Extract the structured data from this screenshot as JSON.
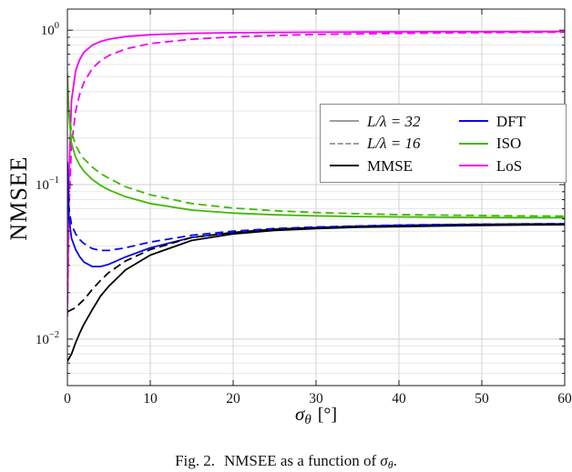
{
  "figure": {
    "ylabel": "NMSEE",
    "xlabel": {
      "sigma": "σ",
      "sub": "θ",
      "unit": "[°]"
    },
    "caption": {
      "tag": "Fig. 2.",
      "text": "NMSEE as a function of",
      "sigma": "σ",
      "sub": "θ",
      "period": "."
    }
  },
  "colors": {
    "axis": "#1a1a1a",
    "grid_major": "#d2d2d2",
    "grid_minor": "#e7e7e7",
    "black": "#000000",
    "blue": "#0808e8",
    "green": "#3fb800",
    "magenta": "#f400f4",
    "gray": "#9e9e9e"
  },
  "chart_data": {
    "type": "line",
    "title": "",
    "xlabel": "sigma_theta [deg]",
    "ylabel": "NMSEE",
    "xlim": [
      0,
      60
    ],
    "ylim": [
      0.005,
      1.37
    ],
    "yscale": "log",
    "grid": true,
    "x_ticks": [
      0,
      10,
      20,
      30,
      40,
      50,
      60
    ],
    "y_ticks": [
      {
        "value": 0.01,
        "base": "10",
        "exp": "−2"
      },
      {
        "value": 0.1,
        "base": "10",
        "exp": "−1"
      },
      {
        "value": 1,
        "base": "10",
        "exp": "0"
      }
    ],
    "x": [
      0,
      0.2,
      0.5,
      1,
      1.5,
      2,
      3,
      4,
      5,
      7,
      10,
      15,
      20,
      25,
      30,
      35,
      40,
      45,
      50,
      55,
      60
    ],
    "series": [
      {
        "id": "los-16",
        "name": "LoS (L/λ = 16)",
        "color": "#f400f4",
        "dash": "dashed",
        "values": [
          0.014,
          0.07,
          0.18,
          0.3,
          0.39,
          0.46,
          0.565,
          0.635,
          0.685,
          0.755,
          0.82,
          0.875,
          0.905,
          0.925,
          0.938,
          0.947,
          0.9545,
          0.96,
          0.9645,
          0.968,
          0.971
        ]
      },
      {
        "id": "los-32",
        "name": "LoS (L/λ = 32)",
        "color": "#f400f4",
        "dash": "solid",
        "values": [
          0.016,
          0.12,
          0.35,
          0.55,
          0.65,
          0.72,
          0.8,
          0.845,
          0.875,
          0.91,
          0.935,
          0.955,
          0.963,
          0.968,
          0.971,
          0.9735,
          0.9755,
          0.977,
          0.978,
          0.979,
          0.98
        ]
      },
      {
        "id": "iso-16",
        "name": "ISO (L/λ = 16)",
        "color": "#3fb800",
        "dash": "dashed",
        "values": [
          0.45,
          0.3,
          0.22,
          0.18,
          0.16,
          0.147,
          0.13,
          0.118,
          0.11,
          0.097,
          0.086,
          0.0755,
          0.0705,
          0.0678,
          0.066,
          0.0648,
          0.064,
          0.0635,
          0.0631,
          0.0628,
          0.0626
        ]
      },
      {
        "id": "iso-32",
        "name": "ISO (L/λ = 32)",
        "color": "#3fb800",
        "dash": "solid",
        "values": [
          0.52,
          0.28,
          0.185,
          0.15,
          0.133,
          0.122,
          0.108,
          0.099,
          0.0925,
          0.0835,
          0.0755,
          0.0685,
          0.0655,
          0.0638,
          0.0628,
          0.0622,
          0.0618,
          0.0615,
          0.0613,
          0.0612,
          0.0611
        ]
      },
      {
        "id": "dft-16",
        "name": "DFT (L/λ = 16)",
        "color": "#0808e8",
        "dash": "dashed",
        "values": [
          0.11,
          0.07,
          0.055,
          0.048,
          0.044,
          0.0415,
          0.0385,
          0.0375,
          0.0375,
          0.039,
          0.0425,
          0.047,
          0.05,
          0.052,
          0.0532,
          0.054,
          0.0547,
          0.0552,
          0.0555,
          0.0557,
          0.0559
        ]
      },
      {
        "id": "dft-32",
        "name": "DFT (L/λ = 32)",
        "color": "#0808e8",
        "dash": "solid",
        "values": [
          0.14,
          0.06,
          0.045,
          0.038,
          0.034,
          0.0315,
          0.0295,
          0.0295,
          0.0305,
          0.034,
          0.039,
          0.0455,
          0.049,
          0.0515,
          0.0528,
          0.0538,
          0.0545,
          0.055,
          0.0553,
          0.0556,
          0.0558
        ]
      },
      {
        "id": "mmse-16",
        "name": "MMSE (L/λ = 16)",
        "color": "#000000",
        "dash": "dashed",
        "values": [
          0.015,
          0.0152,
          0.0155,
          0.016,
          0.017,
          0.018,
          0.021,
          0.024,
          0.027,
          0.032,
          0.038,
          0.0455,
          0.049,
          0.0515,
          0.0525,
          0.0535,
          0.054,
          0.0545,
          0.0548,
          0.055,
          0.0552
        ]
      },
      {
        "id": "mmse-32",
        "name": "MMSE (L/λ = 32)",
        "color": "#000000",
        "dash": "solid",
        "values": [
          0.0072,
          0.0075,
          0.008,
          0.0095,
          0.011,
          0.0125,
          0.0155,
          0.019,
          0.022,
          0.028,
          0.035,
          0.0435,
          0.048,
          0.0505,
          0.052,
          0.053,
          0.0535,
          0.054,
          0.0545,
          0.0548,
          0.055
        ]
      }
    ],
    "legend": {
      "position": "upper-right-inside",
      "columns": 2,
      "items": [
        {
          "id": "l32",
          "label": "L/λ = 32",
          "italic": true,
          "color": "#9e9e9e",
          "dash": "solid"
        },
        {
          "id": "dft",
          "label": "DFT",
          "italic": false,
          "color": "#0808e8",
          "dash": "solid"
        },
        {
          "id": "l16",
          "label": "L/λ = 16",
          "italic": true,
          "color": "#9e9e9e",
          "dash": "dashed"
        },
        {
          "id": "iso",
          "label": "ISO",
          "italic": false,
          "color": "#3fb800",
          "dash": "solid"
        },
        {
          "id": "mmse",
          "label": "MMSE",
          "italic": false,
          "color": "#000000",
          "dash": "solid"
        },
        {
          "id": "los",
          "label": "LoS",
          "italic": false,
          "color": "#f400f4",
          "dash": "solid"
        }
      ]
    }
  }
}
